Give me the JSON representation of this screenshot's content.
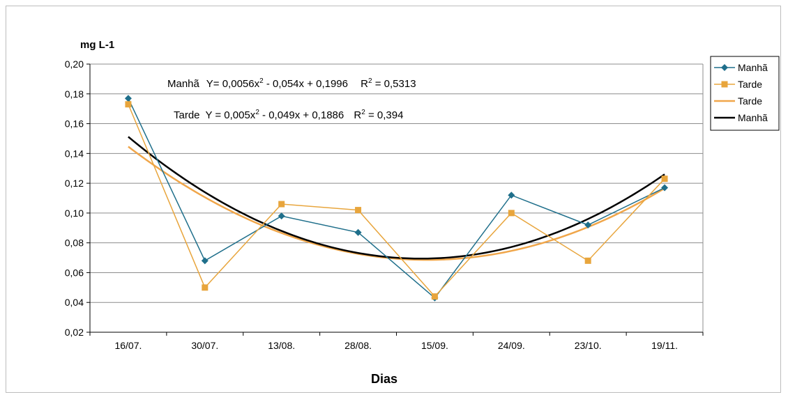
{
  "chart_data": {
    "type": "line",
    "title": "",
    "ylabel": "mg L-1",
    "xlabel": "Dias",
    "categories": [
      "16/07.",
      "30/07.",
      "13/08.",
      "28/08.",
      "15/09.",
      "24/09.",
      "23/10.",
      "19/11."
    ],
    "yticks": [
      "0,02",
      "0,04",
      "0,06",
      "0,08",
      "0,10",
      "0,12",
      "0,14",
      "0,16",
      "0,18",
      "0,20"
    ],
    "ylim": [
      0.02,
      0.2
    ],
    "grid": true,
    "legend_position": "right",
    "series": [
      {
        "name": "Manhã",
        "kind": "data",
        "marker": "diamond",
        "color": "#1f6f8b",
        "values": [
          0.177,
          0.068,
          0.098,
          0.087,
          0.043,
          0.112,
          0.092,
          0.117
        ]
      },
      {
        "name": "Tarde",
        "kind": "data",
        "marker": "square",
        "color": "#e8a53c",
        "values": [
          0.173,
          0.05,
          0.106,
          0.102,
          0.044,
          0.1,
          0.068,
          0.123
        ]
      },
      {
        "name": "Tarde",
        "kind": "trend",
        "color": "#f0a64a",
        "coefficients": {
          "a": 0.005,
          "b": -0.049,
          "c": 0.1886
        }
      },
      {
        "name": "Manhã",
        "kind": "trend",
        "color": "#000000",
        "coefficients": {
          "a": 0.0056,
          "b": -0.054,
          "c": 0.1996
        }
      }
    ],
    "annotations": [
      {
        "id": "manha",
        "name": "Manhã",
        "eq_text": "Y= 0,0056x",
        "eq_exp": "2",
        "eq_rest": " - 0,054x + 0,1996",
        "r_label": "R",
        "r_exp": "2",
        "r_value": " = 0,5313"
      },
      {
        "id": "tarde",
        "name": "Tarde",
        "eq_text": "Y = 0,005x",
        "eq_exp": "2",
        "eq_rest": " - 0,049x + 0,1886",
        "r_label": "R",
        "r_exp": "2",
        "r_value": " = 0,394"
      }
    ],
    "legend": [
      "Manhã",
      "Tarde",
      "Tarde",
      "Manhã"
    ]
  }
}
